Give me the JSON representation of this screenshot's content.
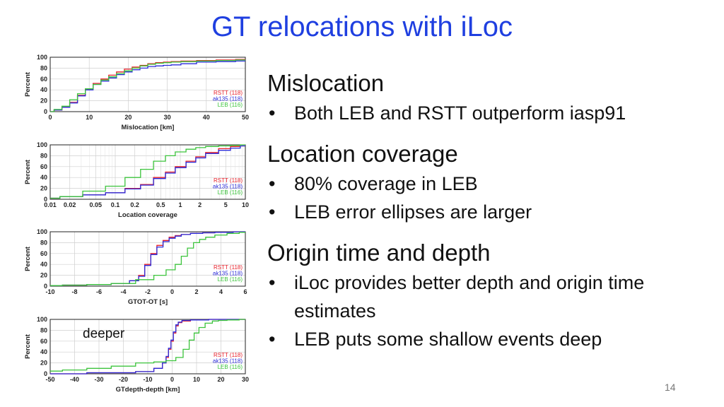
{
  "slide": {
    "title": "GT relocations with iLoc",
    "page_number": "14",
    "sections": [
      {
        "heading": "Mislocation",
        "bullets": [
          "Both LEB and RSTT outperform iasp91"
        ]
      },
      {
        "heading": "Location coverage",
        "bullets": [
          "80% coverage in LEB",
          "LEB error ellipses are larger"
        ]
      },
      {
        "heading": "Origin time and depth",
        "bullets": [
          "iLoc provides better depth and origin time estimates",
          "LEB puts some shallow events deep"
        ]
      }
    ]
  },
  "colors": {
    "title": "#1f3fe0",
    "RSTT": "#e8202a",
    "ak135": "#2b2bd9",
    "LEB": "#3cc43c"
  },
  "chart_data": [
    {
      "type": "line",
      "title": "",
      "xlabel": "Mislocation [km]",
      "ylabel": "Percent",
      "xscale": "linear",
      "xlim": [
        0,
        50
      ],
      "ylim": [
        0,
        100
      ],
      "xticks": [
        0,
        10,
        20,
        30,
        40,
        50
      ],
      "xticklabels": [
        "0",
        "10",
        "20",
        "30",
        "40",
        "50"
      ],
      "yticks": [
        0,
        20,
        40,
        60,
        80,
        100
      ],
      "grid": true,
      "legend_position": "bottom-right",
      "annotation": "",
      "series": [
        {
          "name": "RSTT (118)",
          "color": "#e8202a",
          "x": [
            0,
            2,
            4,
            6,
            8,
            10,
            12,
            14,
            16,
            18,
            20,
            22,
            24,
            26,
            28,
            30,
            32,
            35,
            40,
            45,
            50
          ],
          "y": [
            0,
            3,
            8,
            17,
            30,
            42,
            52,
            60,
            67,
            73,
            78,
            82,
            85,
            88,
            90,
            91,
            92,
            93,
            94,
            95,
            96
          ]
        },
        {
          "name": "ak135 (118)",
          "color": "#2b2bd9",
          "x": [
            0,
            2,
            4,
            6,
            8,
            10,
            12,
            14,
            16,
            18,
            20,
            22,
            24,
            26,
            28,
            30,
            32,
            35,
            40,
            45,
            50
          ],
          "y": [
            0,
            3,
            8,
            16,
            29,
            40,
            50,
            56,
            62,
            68,
            73,
            77,
            80,
            83,
            84,
            85,
            86,
            88,
            91,
            92,
            93
          ]
        },
        {
          "name": "LEB (116)",
          "color": "#3cc43c",
          "x": [
            0,
            2,
            4,
            6,
            8,
            10,
            12,
            14,
            16,
            18,
            20,
            22,
            24,
            26,
            28,
            30,
            32,
            35,
            40,
            45,
            50
          ],
          "y": [
            0,
            4,
            10,
            22,
            33,
            42,
            50,
            58,
            64,
            70,
            75,
            80,
            84,
            87,
            89,
            90,
            91,
            92,
            93,
            94,
            95
          ]
        }
      ]
    },
    {
      "type": "line",
      "title": "",
      "xlabel": "Location coverage",
      "ylabel": "Percent",
      "xscale": "log",
      "xlim": [
        0.01,
        10
      ],
      "ylim": [
        0,
        100
      ],
      "xticks": [
        0.01,
        0.02,
        0.05,
        0.1,
        0.2,
        0.5,
        1,
        2,
        5,
        10
      ],
      "xticklabels": [
        "0.01",
        "0.02",
        "0.05",
        "0.1",
        "0.2",
        "0.5",
        "1",
        "2",
        "5",
        "10"
      ],
      "yticks": [
        0,
        20,
        40,
        60,
        80,
        100
      ],
      "grid": true,
      "legend_position": "bottom-right",
      "annotation": "",
      "series": [
        {
          "name": "RSTT (118)",
          "color": "#e8202a",
          "x": [
            0.01,
            0.02,
            0.05,
            0.1,
            0.2,
            0.3,
            0.5,
            0.7,
            1,
            1.5,
            2,
            3,
            5,
            7,
            10
          ],
          "y": [
            2,
            5,
            8,
            12,
            20,
            27,
            40,
            50,
            60,
            70,
            78,
            86,
            93,
            97,
            98
          ]
        },
        {
          "name": "ak135 (118)",
          "color": "#2b2bd9",
          "x": [
            0.01,
            0.02,
            0.05,
            0.1,
            0.2,
            0.3,
            0.5,
            0.7,
            1,
            1.5,
            2,
            3,
            5,
            7,
            10
          ],
          "y": [
            2,
            5,
            8,
            12,
            19,
            26,
            38,
            48,
            58,
            68,
            76,
            84,
            90,
            94,
            98
          ]
        },
        {
          "name": "LEB (116)",
          "color": "#3cc43c",
          "x": [
            0.01,
            0.02,
            0.05,
            0.1,
            0.2,
            0.3,
            0.5,
            0.7,
            1,
            1.5,
            2,
            3,
            5,
            7,
            10
          ],
          "y": [
            2,
            5,
            15,
            24,
            40,
            55,
            70,
            80,
            87,
            92,
            95,
            97,
            98,
            99,
            100
          ]
        }
      ]
    },
    {
      "type": "line",
      "title": "",
      "xlabel": "GTOT-OT [s]",
      "ylabel": "Percent",
      "xscale": "linear",
      "xlim": [
        -10,
        6
      ],
      "ylim": [
        0,
        100
      ],
      "xticks": [
        -10,
        -8,
        -6,
        -4,
        -2,
        0,
        2,
        4,
        6
      ],
      "xticklabels": [
        "-10",
        "-8",
        "-6",
        "-4",
        "-2",
        "0",
        "2",
        "4",
        "6"
      ],
      "yticks": [
        0,
        20,
        40,
        60,
        80,
        100
      ],
      "grid": true,
      "legend_position": "bottom-right",
      "annotation": "",
      "series": [
        {
          "name": "RSTT (118)",
          "color": "#e8202a",
          "x": [
            -10,
            -8,
            -6,
            -4,
            -3,
            -2.5,
            -2,
            -1.5,
            -1,
            -0.5,
            0,
            0.5,
            1,
            2,
            3,
            4,
            6
          ],
          "y": [
            1,
            2,
            3,
            5,
            10,
            20,
            40,
            60,
            75,
            84,
            90,
            93,
            95,
            97,
            98,
            99,
            100
          ]
        },
        {
          "name": "ak135 (118)",
          "color": "#2b2bd9",
          "x": [
            -10,
            -8,
            -6,
            -4,
            -3,
            -2.5,
            -2,
            -1.5,
            -1,
            -0.5,
            0,
            0.5,
            1,
            2,
            3,
            4,
            6
          ],
          "y": [
            1,
            2,
            3,
            5,
            10,
            18,
            38,
            58,
            72,
            82,
            88,
            92,
            95,
            97,
            98,
            99,
            100
          ]
        },
        {
          "name": "LEB (116)",
          "color": "#3cc43c",
          "x": [
            -10,
            -8,
            -6,
            -4,
            -2,
            -1,
            0,
            0.5,
            1,
            1.5,
            2,
            2.5,
            3,
            4,
            5,
            6
          ],
          "y": [
            1,
            2,
            3,
            5,
            12,
            20,
            30,
            40,
            55,
            70,
            80,
            86,
            90,
            94,
            97,
            99
          ]
        }
      ]
    },
    {
      "type": "line",
      "title": "",
      "xlabel": "GTdepth-depth [km]",
      "ylabel": "Percent",
      "xscale": "linear",
      "xlim": [
        -50,
        30
      ],
      "ylim": [
        0,
        100
      ],
      "xticks": [
        -50,
        -40,
        -30,
        -20,
        -10,
        0,
        10,
        20,
        30
      ],
      "xticklabels": [
        "-50",
        "-40",
        "-30",
        "-20",
        "-10",
        "0",
        "10",
        "20",
        "30"
      ],
      "yticks": [
        0,
        20,
        40,
        60,
        80,
        100
      ],
      "grid": true,
      "legend_position": "bottom-right",
      "annotation": "deeper",
      "series": [
        {
          "name": "RSTT (118)",
          "color": "#e8202a",
          "x": [
            -50,
            -20,
            -10,
            -5,
            -3,
            -2,
            -1,
            0,
            1,
            2,
            3,
            5,
            10,
            20,
            30
          ],
          "y": [
            0,
            2,
            4,
            10,
            20,
            30,
            45,
            60,
            75,
            88,
            94,
            97,
            99,
            100,
            100
          ]
        },
        {
          "name": "ak135 (118)",
          "color": "#2b2bd9",
          "x": [
            -50,
            -20,
            -10,
            -5,
            -3,
            -2,
            -1,
            0,
            1,
            2,
            3,
            5,
            10,
            20,
            30
          ],
          "y": [
            0,
            2,
            4,
            10,
            20,
            32,
            47,
            62,
            77,
            90,
            95,
            98,
            99,
            100,
            100
          ]
        },
        {
          "name": "LEB (116)",
          "color": "#3cc43c",
          "x": [
            -50,
            -40,
            -30,
            -20,
            -10,
            -5,
            0,
            3,
            6,
            8,
            10,
            12,
            15,
            18,
            20,
            25,
            30
          ],
          "y": [
            5,
            7,
            10,
            14,
            20,
            22,
            24,
            30,
            45,
            62,
            75,
            85,
            93,
            97,
            98,
            99,
            100
          ]
        }
      ]
    }
  ]
}
